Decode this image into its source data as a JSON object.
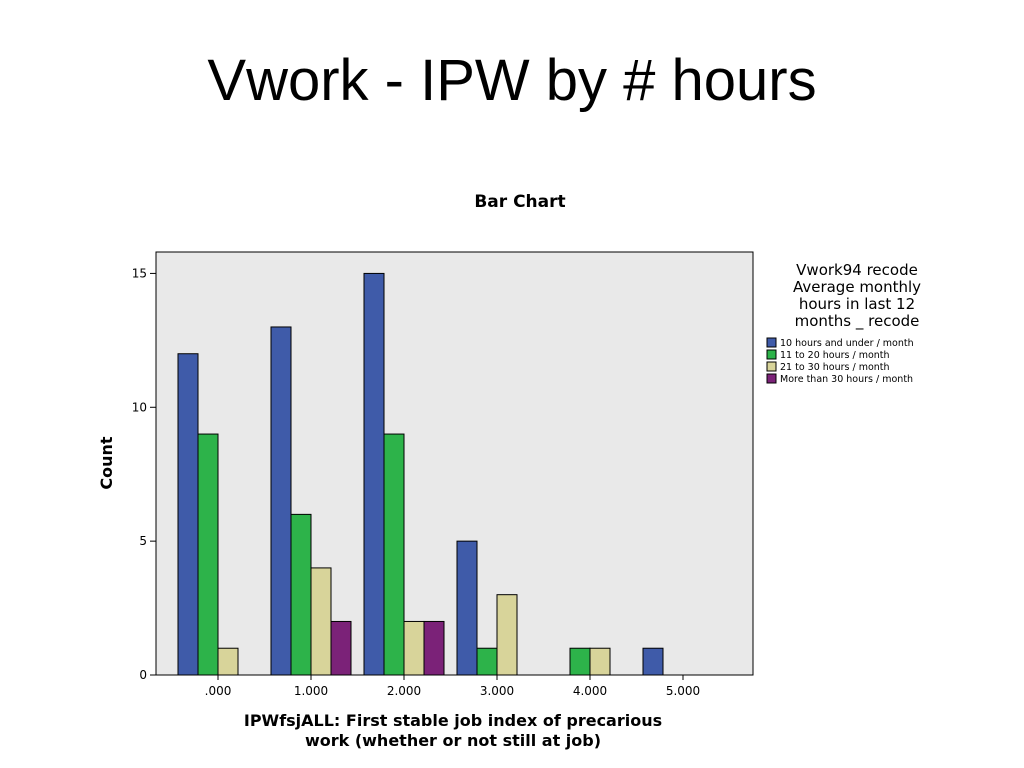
{
  "slide": {
    "title": "Vwork - IPW by # hours"
  },
  "chart_data": {
    "type": "bar",
    "title": "Bar Chart",
    "xlabel_lines": [
      "IPWfsjALL: First stable job index of precarious",
      "work (whether or not still at job)"
    ],
    "ylabel": "Count",
    "categories": [
      ".000",
      "1.000",
      "2.000",
      "3.000",
      "4.000",
      "5.000"
    ],
    "ylim": [
      0,
      15.8
    ],
    "yticks": [
      0,
      5,
      10,
      15
    ],
    "legend_title_lines": [
      "Vwork94 recode",
      "Average monthly",
      "hours in last 12",
      "months _ recode"
    ],
    "legend_placement": "right",
    "grid": false,
    "series": [
      {
        "name": "10 hours and under / month",
        "color": "#3f5ba9",
        "values": [
          12,
          13,
          15,
          5,
          0,
          1
        ]
      },
      {
        "name": "11 to 20 hours /  month",
        "color": "#2db34a",
        "values": [
          9,
          6,
          9,
          1,
          1,
          0
        ]
      },
      {
        "name": "21 to 30 hours / month",
        "color": "#d8d49a",
        "values": [
          1,
          4,
          2,
          3,
          1,
          0
        ]
      },
      {
        "name": "More than 30 hours / month",
        "color": "#7b2278",
        "values": [
          0,
          2,
          2,
          0,
          0,
          0
        ]
      }
    ]
  }
}
